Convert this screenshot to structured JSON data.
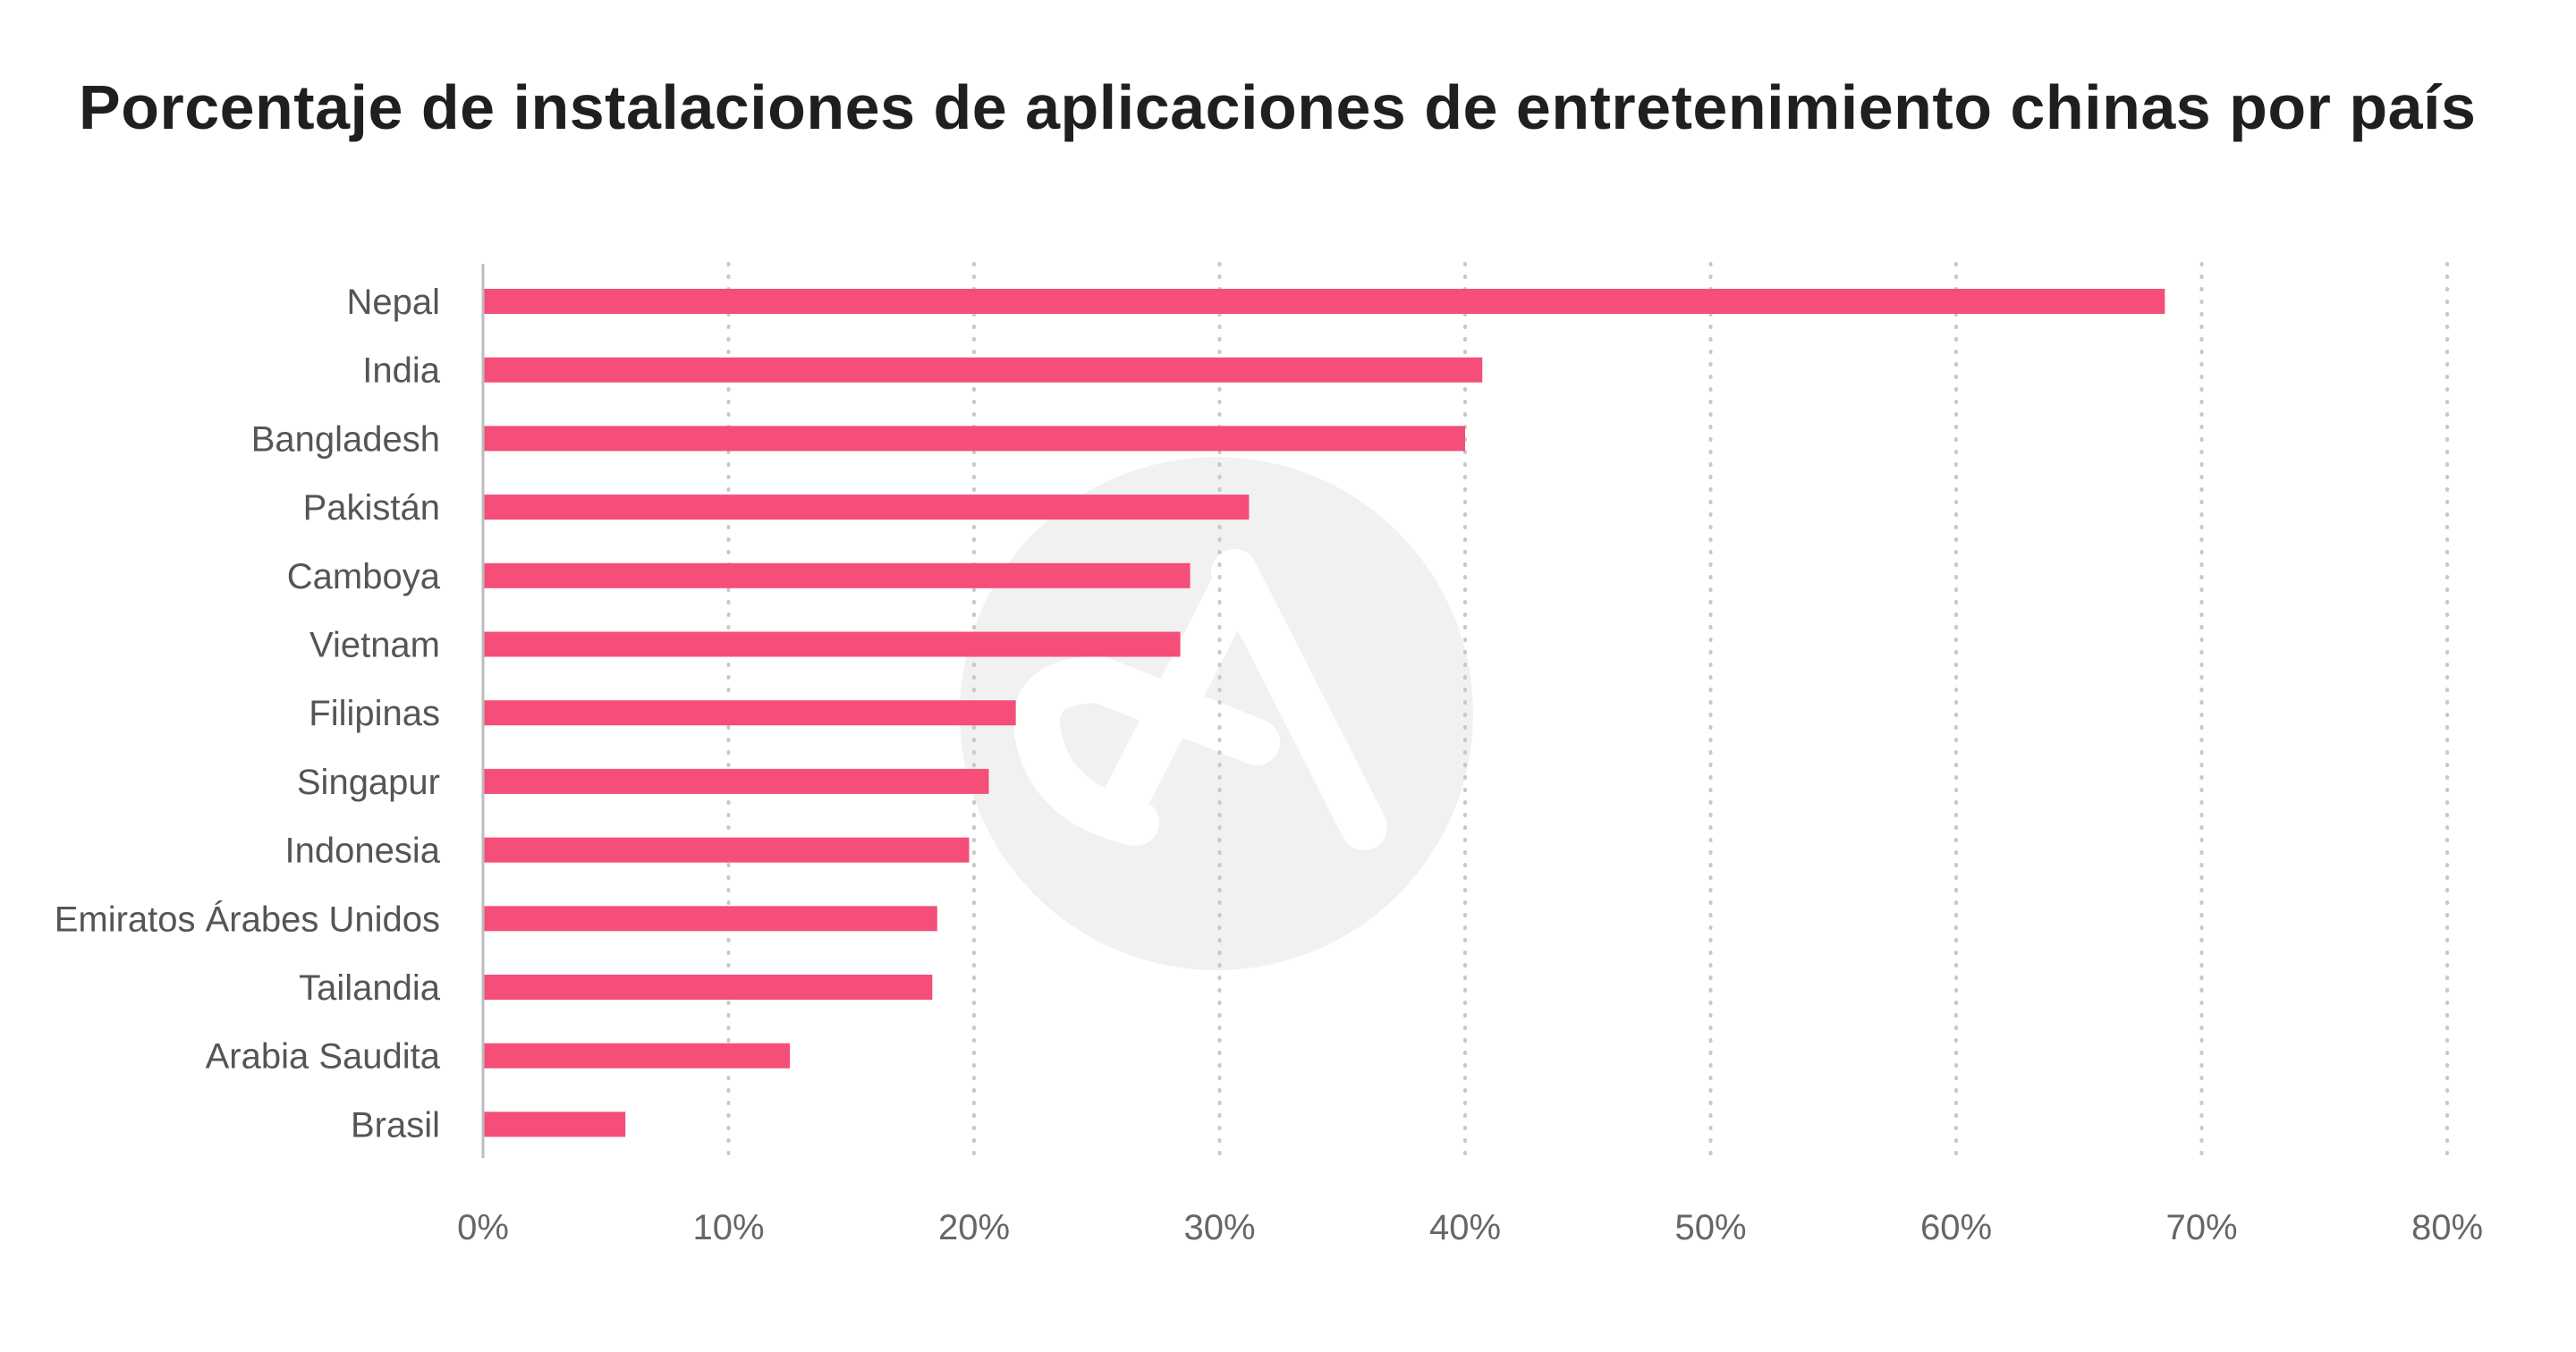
{
  "chart_data": {
    "type": "bar",
    "orientation": "horizontal",
    "title": "Porcentaje de instalaciones de aplicaciones de entretenimiento chinas por país",
    "categories": [
      "Nepal",
      "India",
      "Bangladesh",
      "Pakistán",
      "Camboya",
      "Vietnam",
      "Filipinas",
      "Singapur",
      "Indonesia",
      "Emiratos Árabes Unidos",
      "Tailandia",
      "Arabia Saudita",
      "Brasil"
    ],
    "values": [
      68.5,
      40.7,
      40.0,
      31.2,
      28.8,
      28.4,
      21.7,
      20.6,
      19.8,
      18.5,
      18.3,
      12.5,
      5.8
    ],
    "xlim": [
      0,
      80
    ],
    "xticks": [
      0,
      10,
      20,
      30,
      40,
      50,
      60,
      70,
      80
    ],
    "xtick_labels": [
      "0%",
      "10%",
      "20%",
      "30%",
      "40%",
      "50%",
      "60%",
      "70%",
      "80%"
    ],
    "xlabel": "",
    "ylabel": "",
    "grid": "vertical dotted",
    "bar_color": "#f44e79",
    "grid_color": "#c8c8c8",
    "axis_color": "#bdbdbd",
    "watermark_color": "#f2f1f1"
  }
}
